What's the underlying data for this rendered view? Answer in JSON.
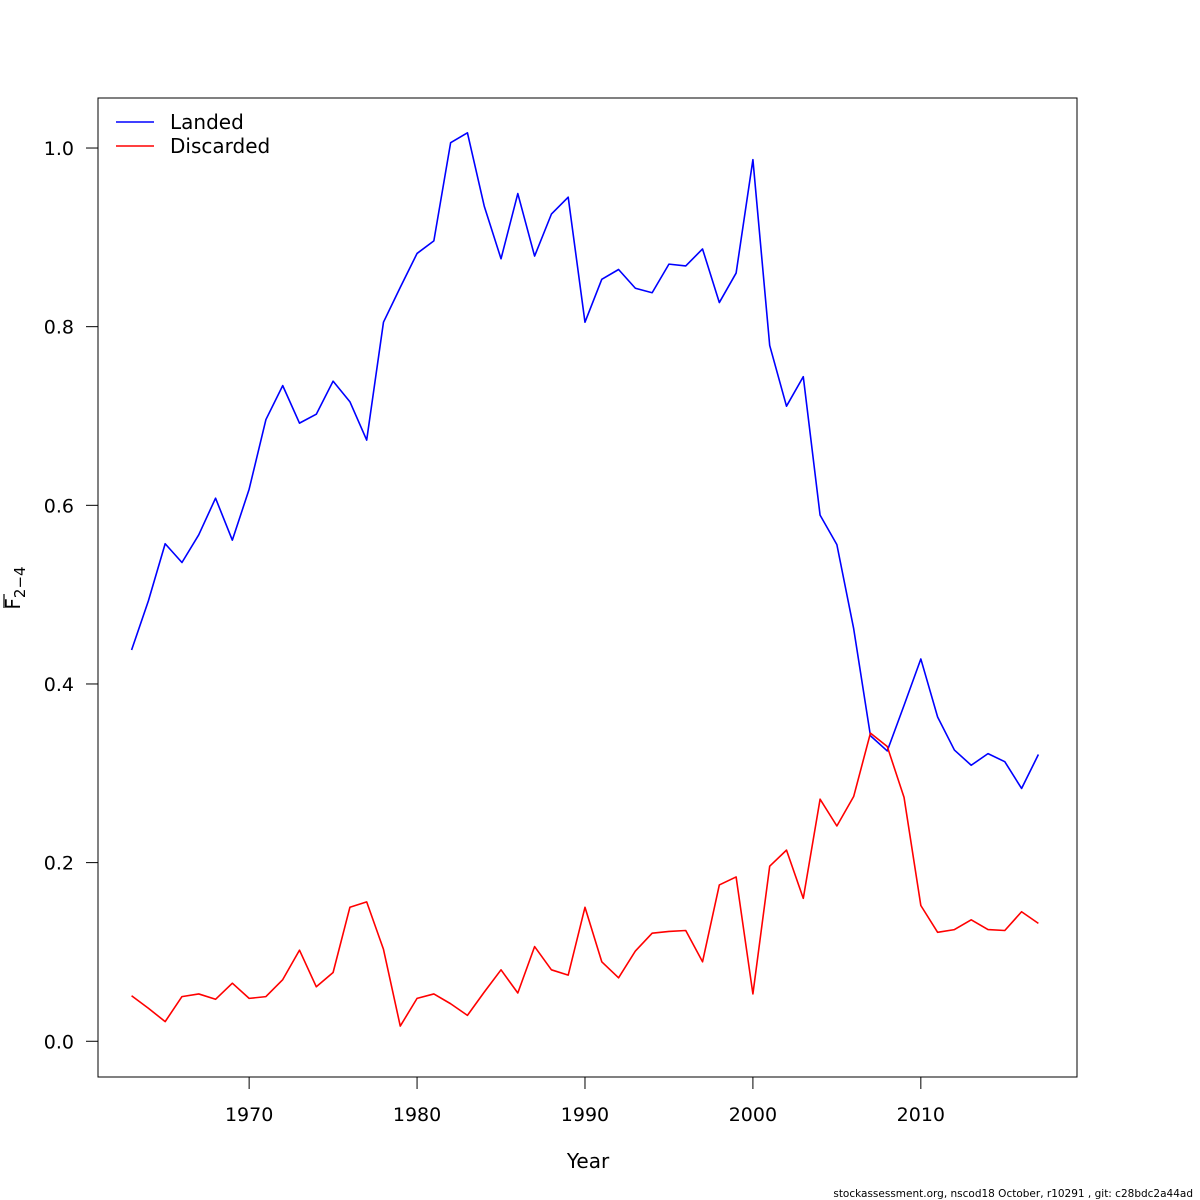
{
  "chart_data": {
    "type": "line",
    "xlabel": "Year",
    "ylabel_main": "F",
    "ylabel_sub": "2−4",
    "xlim": [
      1961,
      2019.3
    ],
    "ylim": [
      -0.04,
      1.056
    ],
    "xticks": [
      1970,
      1980,
      1990,
      2000,
      2010
    ],
    "yticks": [
      0.0,
      0.2,
      0.4,
      0.6,
      0.8,
      1.0
    ],
    "ytick_labels": [
      "0.0",
      "0.2",
      "0.4",
      "0.6",
      "0.8",
      "1.0"
    ],
    "legend_position": "top-left",
    "x": [
      1963,
      1964,
      1965,
      1966,
      1967,
      1968,
      1969,
      1970,
      1971,
      1972,
      1973,
      1974,
      1975,
      1976,
      1977,
      1978,
      1979,
      1980,
      1981,
      1982,
      1983,
      1984,
      1985,
      1986,
      1987,
      1988,
      1989,
      1990,
      1991,
      1992,
      1993,
      1994,
      1995,
      1996,
      1997,
      1998,
      1999,
      2000,
      2001,
      2002,
      2003,
      2004,
      2005,
      2006,
      2007,
      2008,
      2009,
      2010,
      2011,
      2012,
      2013,
      2014,
      2015,
      2016,
      2017
    ],
    "series": [
      {
        "name": "Landed",
        "color": "#0000ff",
        "values": [
          0.438,
          0.493,
          0.557,
          0.536,
          0.567,
          0.608,
          0.561,
          0.618,
          0.696,
          0.734,
          0.692,
          0.702,
          0.739,
          0.716,
          0.673,
          0.805,
          0.844,
          0.882,
          0.896,
          1.006,
          1.017,
          0.935,
          0.876,
          0.949,
          0.879,
          0.926,
          0.945,
          0.805,
          0.853,
          0.864,
          0.843,
          0.838,
          0.87,
          0.868,
          0.887,
          0.827,
          0.86,
          0.987,
          0.779,
          0.711,
          0.744,
          0.589,
          0.556,
          0.462,
          0.342,
          0.325,
          0.376,
          0.428,
          0.363,
          0.326,
          0.309,
          0.322,
          0.313,
          0.283,
          0.321
        ]
      },
      {
        "name": "Discarded",
        "color": "#ff0000",
        "values": [
          0.051,
          0.037,
          0.022,
          0.05,
          0.053,
          0.047,
          0.065,
          0.048,
          0.05,
          0.069,
          0.102,
          0.061,
          0.077,
          0.15,
          0.156,
          0.103,
          0.017,
          0.048,
          0.053,
          0.042,
          0.029,
          0.055,
          0.08,
          0.054,
          0.106,
          0.08,
          0.074,
          0.15,
          0.089,
          0.071,
          0.101,
          0.121,
          0.123,
          0.124,
          0.089,
          0.175,
          0.184,
          0.053,
          0.196,
          0.214,
          0.16,
          0.271,
          0.241,
          0.274,
          0.345,
          0.33,
          0.273,
          0.152,
          0.122,
          0.125,
          0.136,
          0.125,
          0.124,
          0.145,
          0.132
        ]
      }
    ]
  },
  "footer": "stockassessment.org, nscod18  October, r10291 , git: c28bdc2a44ad"
}
